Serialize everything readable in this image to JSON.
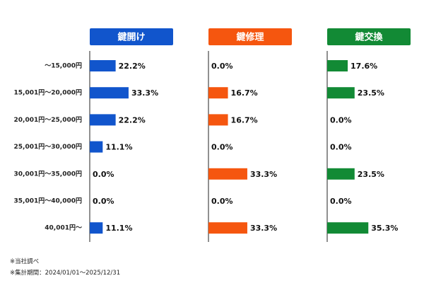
{
  "chart_data": {
    "type": "bar",
    "orientation": "horizontal",
    "categories": [
      "〜15,000円",
      "15,001円〜20,000円",
      "20,001円〜25,000円",
      "25,001円〜30,000円",
      "30,001円〜35,000円",
      "35,001円〜40,000円",
      "40,001円〜"
    ],
    "series": [
      {
        "name": "鍵開け",
        "color": "#1155cc",
        "values": [
          22.2,
          33.3,
          22.2,
          11.1,
          0.0,
          0.0,
          11.1
        ]
      },
      {
        "name": "鍵修理",
        "color": "#f5560f",
        "values": [
          0.0,
          16.7,
          16.7,
          0.0,
          33.3,
          0.0,
          33.3
        ]
      },
      {
        "name": "鍵交換",
        "color": "#128a35",
        "values": [
          17.6,
          23.5,
          0.0,
          0.0,
          23.5,
          0.0,
          35.3
        ]
      }
    ],
    "value_suffix": "%",
    "value_decimals": 1,
    "xlim": [
      0,
      100
    ],
    "grid": false,
    "legend": "top"
  },
  "notes": [
    "※当社調べ",
    "※集計期間：2024/01/01〜2025/12/31"
  ]
}
